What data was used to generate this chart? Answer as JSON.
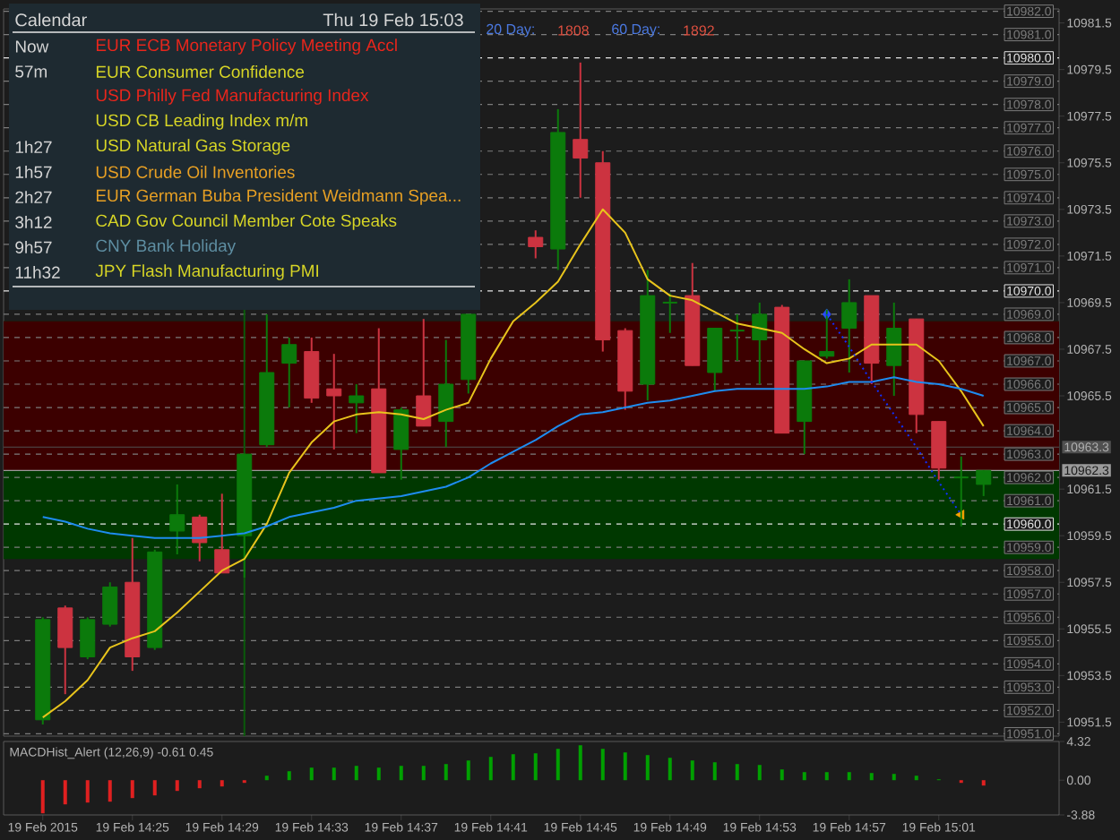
{
  "chart_data": [
    {
      "type": "candlestick",
      "categories": [
        null,
        null,
        null,
        null,
        null,
        null,
        null,
        null,
        null,
        null,
        null,
        null,
        null,
        null,
        null,
        null,
        null,
        null,
        null,
        null,
        null,
        null,
        null,
        null,
        null,
        null,
        null,
        null,
        null,
        null,
        null,
        null,
        null,
        null,
        null,
        null,
        null,
        null,
        null,
        null,
        null,
        null,
        null
      ],
      "ohlc": [
        [
          10951.6,
          10956.0,
          10951.4,
          10955.9
        ],
        [
          10956.4,
          10956.5,
          10952.7,
          10954.7
        ],
        [
          10954.3,
          10956.0,
          10954.2,
          10955.9
        ],
        [
          10955.7,
          10957.5,
          10955.6,
          10957.3
        ],
        [
          10957.5,
          10959.4,
          10953.7,
          10954.3
        ],
        [
          10954.7,
          10958.9,
          10954.6,
          10958.8
        ],
        [
          10959.7,
          10961.7,
          10958.7,
          10960.4
        ],
        [
          10960.3,
          10960.4,
          10958.4,
          10959.2
        ],
        [
          10958.9,
          10961.3,
          10957.9,
          10957.9
        ],
        [
          10959.5,
          10963.0,
          10957.7,
          10963.0
        ],
        [
          10963.4,
          10969.0,
          10963.3,
          10966.5
        ],
        [
          10966.9,
          10968.0,
          10965.0,
          10967.7
        ],
        [
          10967.4,
          10968.0,
          10965.2,
          10965.4
        ],
        [
          10965.8,
          10967.3,
          10963.2,
          10965.5
        ],
        [
          10965.2,
          10966.0,
          10963.9,
          10965.5
        ],
        [
          10965.8,
          10968.4,
          10962.2,
          10962.2
        ],
        [
          10963.2,
          10965.0,
          10961.9,
          10964.9
        ],
        [
          10965.5,
          10968.8,
          10964.2,
          10964.2
        ],
        [
          10964.4,
          10967.9,
          10963.3,
          10966.0
        ],
        [
          10966.2,
          10969.0,
          10965.6,
          10969.0
        ],
        null,
        null,
        [
          10972.3,
          10972.6,
          10971.4,
          10971.9
        ],
        [
          10971.8,
          10977.8,
          10970.9,
          10976.8
        ],
        [
          10976.5,
          10979.8,
          10974.0,
          10975.7
        ],
        [
          10975.5,
          10976.0,
          10967.4,
          10967.9
        ],
        [
          10968.3,
          10968.4,
          10964.9,
          10965.7
        ],
        [
          10966.0,
          10970.9,
          10965.3,
          10969.8
        ],
        [
          10969.5,
          10969.9,
          10968.2,
          10969.5
        ],
        [
          10969.8,
          10971.2,
          10966.8,
          10966.8
        ],
        [
          10966.5,
          10968.4,
          10965.7,
          10968.4
        ],
        [
          10968.3,
          10969.0,
          10967.0,
          10968.3
        ],
        [
          10967.9,
          10969.5,
          10966.0,
          10969.0
        ],
        [
          10969.3,
          10969.4,
          10963.9,
          10963.9
        ],
        [
          10964.4,
          10967.0,
          10963.0,
          10967.0
        ],
        [
          10967.2,
          10969.2,
          10967.1,
          10967.4
        ],
        [
          10968.4,
          10970.5,
          10966.5,
          10969.5
        ],
        [
          10969.8,
          10969.8,
          10966.0,
          10966.9
        ],
        [
          10966.8,
          10969.5,
          10965.5,
          10968.4
        ],
        [
          10968.8,
          10968.8,
          10963.9,
          10964.7
        ],
        [
          10964.4,
          10964.4,
          10961.9,
          10962.4
        ],
        [
          10962.0,
          10962.9,
          10959.9,
          10962.0
        ],
        [
          10961.7,
          10962.3,
          10961.2,
          10962.3
        ]
      ],
      "colors": [
        "#0b7a0b",
        "#cc3340",
        "#0b7a0b",
        "#0b7a0b",
        "#cc3340",
        "#0b7a0b",
        "#0b7a0b",
        "#cc3340",
        "#cc3340",
        "#0b7a0b",
        "#0b7a0b",
        "#0b7a0b",
        "#cc3340",
        "#cc3340",
        "#0b7a0b",
        "#cc3340",
        "#0b7a0b",
        "#cc3340",
        "#0b7a0b",
        "#0b7a0b",
        null,
        null,
        "#cc3340",
        "#0b7a0b",
        "#cc3340",
        "#cc3340",
        "#cc3340",
        "#0b7a0b",
        "#0b7a0b",
        "#cc3340",
        "#0b7a0b",
        "#0b7a0b",
        "#0b7a0b",
        "#cc3340",
        "#0b7a0b",
        "#0b7a0b",
        "#0b7a0b",
        "#cc3340",
        "#0b7a0b",
        "#cc3340",
        "#cc3340",
        "#0b7a0b",
        "#0b7a0b"
      ],
      "series": [
        {
          "type": "line",
          "color": "#e8c41c",
          "values": [
            10951.7,
            10952.4,
            10953.3,
            10954.7,
            10955.1,
            10955.4,
            10956.2,
            10957.1,
            10958.0,
            10958.5,
            10960.0,
            10962.2,
            10963.5,
            10964.4,
            10964.7,
            10964.8,
            10964.7,
            10964.5,
            10964.9,
            10965.2,
            10967.1,
            10968.7,
            10969.5,
            10970.4,
            10972.0,
            10973.5,
            10972.5,
            10970.5,
            10969.8,
            10969.6,
            10969.1,
            10968.6,
            10968.4,
            10968.2,
            10967.5,
            10966.9,
            10967.1,
            10967.7,
            10967.7,
            10967.7,
            10967.0,
            10965.7,
            10964.2
          ]
        },
        {
          "type": "line",
          "color": "#1e8cf0",
          "values": [
            10960.3,
            10960.1,
            10959.8,
            10959.6,
            10959.5,
            10959.4,
            10959.4,
            10959.4,
            10959.5,
            10959.6,
            10959.9,
            10960.3,
            10960.5,
            10960.7,
            10961.0,
            10961.1,
            10961.2,
            10961.4,
            10961.6,
            10962.0,
            10962.6,
            10963.1,
            10963.6,
            10964.2,
            10964.7,
            10964.8,
            10965.0,
            10965.2,
            10965.3,
            10965.5,
            10965.7,
            10965.8,
            10965.8,
            10965.8,
            10965.8,
            10965.9,
            10966.1,
            10966.1,
            10966.3,
            10966.1,
            10966.0,
            10965.8,
            10965.5
          ]
        },
        {
          "type": "line",
          "color": "#1030ff",
          "line_style": "dotted",
          "values": [
            null,
            null,
            null,
            null,
            null,
            null,
            null,
            null,
            null,
            null,
            null,
            null,
            null,
            null,
            null,
            null,
            null,
            null,
            null,
            null,
            null,
            null,
            null,
            null,
            null,
            null,
            null,
            null,
            null,
            null,
            null,
            null,
            null,
            null,
            null,
            10969.0,
            10967.6,
            10966.1,
            10964.7,
            10963.3,
            10961.8,
            10960.4,
            null
          ]
        },
        {
          "type": "scatter",
          "color": "#2a4cff",
          "marker": "diamond",
          "values": [
            null,
            null,
            null,
            null,
            null,
            null,
            null,
            null,
            null,
            null,
            null,
            null,
            null,
            null,
            null,
            null,
            null,
            null,
            null,
            null,
            null,
            null,
            null,
            null,
            null,
            null,
            null,
            null,
            null,
            null,
            null,
            null,
            null,
            null,
            null,
            10969.0,
            null,
            null,
            null,
            null,
            null,
            null,
            null
          ]
        },
        {
          "type": "scatter",
          "color": "#ffa500",
          "marker": "triangle",
          "values": [
            null,
            null,
            null,
            null,
            null,
            null,
            null,
            null,
            null,
            null,
            null,
            null,
            null,
            null,
            null,
            null,
            null,
            null,
            null,
            null,
            null,
            null,
            null,
            null,
            null,
            null,
            null,
            null,
            null,
            null,
            null,
            null,
            null,
            null,
            null,
            null,
            null,
            null,
            null,
            null,
            null,
            10960.4,
            null
          ]
        }
      ],
      "ylim": [
        10950.9,
        10982.1
      ],
      "yticks": [
        10981.5,
        10979.5,
        10977.5,
        10975.5,
        10973.5,
        10971.5,
        10969.5,
        10967.5,
        10965.5,
        10961.5,
        10959.5,
        10957.5,
        10955.5,
        10953.5,
        10951.5
      ],
      "tick_labels": "y",
      "bands": [
        {
          "axis": "y",
          "from": 10958.5,
          "to": 10968.7,
          "color": "#003800"
        },
        {
          "axis": "y",
          "from": 10962.3,
          "to": 10968.7,
          "color": "#3c0000"
        }
      ],
      "ref_lines": [
        {
          "axis": "y",
          "value": 10982,
          "label": "10982.0",
          "color": "#7c7c7c",
          "line_style": "dashed"
        },
        {
          "axis": "y",
          "value": 10981,
          "label": "10981.0",
          "color": "#7c7c7c",
          "line_style": "dashed"
        },
        {
          "axis": "y",
          "value": 10980,
          "label": "10980.0",
          "color": "#e6e6e6",
          "line_style": "dashed"
        },
        {
          "axis": "y",
          "value": 10979,
          "label": "10979.0",
          "color": "#7c7c7c",
          "line_style": "dashed"
        },
        {
          "axis": "y",
          "value": 10978,
          "label": "10978.0",
          "color": "#7c7c7c",
          "line_style": "dashed"
        },
        {
          "axis": "y",
          "value": 10977,
          "label": "10977.0",
          "color": "#7c7c7c",
          "line_style": "dashed"
        },
        {
          "axis": "y",
          "value": 10976,
          "label": "10976.0",
          "color": "#7c7c7c",
          "line_style": "dashed"
        },
        {
          "axis": "y",
          "value": 10975,
          "label": "10975.0",
          "color": "#7c7c7c",
          "line_style": "dashed"
        },
        {
          "axis": "y",
          "value": 10974,
          "label": "10974.0",
          "color": "#7c7c7c",
          "line_style": "dashed"
        },
        {
          "axis": "y",
          "value": 10973,
          "label": "10973.0",
          "color": "#7c7c7c",
          "line_style": "dashed"
        },
        {
          "axis": "y",
          "value": 10972,
          "label": "10972.0",
          "color": "#7c7c7c",
          "line_style": "dashed"
        },
        {
          "axis": "y",
          "value": 10971,
          "label": "10971.0",
          "color": "#7c7c7c",
          "line_style": "dashed"
        },
        {
          "axis": "y",
          "value": 10970,
          "label": "10970.0",
          "color": "#e6e6e6",
          "line_style": "dashed"
        },
        {
          "axis": "y",
          "value": 10969,
          "label": "10969.0",
          "color": "#7c7c7c",
          "line_style": "dashed"
        },
        {
          "axis": "y",
          "value": 10968,
          "label": "10968.0",
          "color": "#7c7c7c",
          "line_style": "dashed"
        },
        {
          "axis": "y",
          "value": 10967,
          "label": "10967.0",
          "color": "#7c7c7c",
          "line_style": "dashed"
        },
        {
          "axis": "y",
          "value": 10966,
          "label": "10966.0",
          "color": "#7c7c7c",
          "line_style": "dashed"
        },
        {
          "axis": "y",
          "value": 10965,
          "label": "10965.0",
          "color": "#7c7c7c",
          "line_style": "dashed"
        },
        {
          "axis": "y",
          "value": 10964,
          "label": "10964.0",
          "color": "#7c7c7c",
          "line_style": "dashed"
        },
        {
          "axis": "y",
          "value": 10963,
          "label": "10963.0",
          "color": "#7c7c7c",
          "line_style": "dashed"
        },
        {
          "axis": "y",
          "value": 10962,
          "label": "10962.0",
          "color": "#7c7c7c",
          "line_style": "dashed"
        },
        {
          "axis": "y",
          "value": 10961,
          "label": "10961.0",
          "color": "#7c7c7c",
          "line_style": "dashed"
        },
        {
          "axis": "y",
          "value": 10960,
          "label": "10960.0",
          "color": "#e6e6e6",
          "line_style": "dashed"
        },
        {
          "axis": "y",
          "value": 10959,
          "label": "10959.0",
          "color": "#7c7c7c",
          "line_style": "dashed"
        },
        {
          "axis": "y",
          "value": 10958,
          "label": "10958.0",
          "color": "#7c7c7c",
          "line_style": "dashed"
        },
        {
          "axis": "y",
          "value": 10957,
          "label": "10957.0",
          "color": "#7c7c7c",
          "line_style": "dashed"
        },
        {
          "axis": "y",
          "value": 10956,
          "label": "10956.0",
          "color": "#7c7c7c",
          "line_style": "dashed"
        },
        {
          "axis": "y",
          "value": 10955,
          "label": "10955.0",
          "color": "#7c7c7c",
          "line_style": "dashed"
        },
        {
          "axis": "y",
          "value": 10954,
          "label": "10954.0",
          "color": "#7c7c7c",
          "line_style": "dashed"
        },
        {
          "axis": "y",
          "value": 10953,
          "label": "10953.0",
          "color": "#7c7c7c",
          "line_style": "dashed"
        },
        {
          "axis": "y",
          "value": 10952,
          "label": "10952.0",
          "color": "#7c7c7c",
          "line_style": "dashed"
        },
        {
          "axis": "y",
          "value": 10951,
          "label": "10951.0",
          "color": "#7c7c7c",
          "line_style": "dashed"
        },
        {
          "axis": "y",
          "value": 10963.3,
          "label": "10963.3",
          "color": "#505050",
          "line_style": "solid"
        },
        {
          "axis": "y",
          "value": 10962.3,
          "label": "10962.3",
          "color": "#9a9a9a",
          "line_style": "solid"
        }
      ],
      "annotations": [
        "20 Day:",
        "1808",
        "60 Day:",
        "1892"
      ]
    },
    {
      "type": "bar",
      "title": "MACDHist_Alert (12,26,9) -0.61 0.45",
      "categories": [
        "19 Feb 2015",
        null,
        null,
        null,
        "19 Feb 14:25",
        null,
        null,
        null,
        "19 Feb 14:29",
        null,
        null,
        null,
        "19 Feb 14:33",
        null,
        null,
        null,
        "19 Feb 14:37",
        null,
        null,
        null,
        "19 Feb 14:41",
        null,
        null,
        null,
        "19 Feb 14:45",
        null,
        null,
        null,
        "19 Feb 14:49",
        null,
        null,
        null,
        "19 Feb 14:53",
        null,
        null,
        null,
        "19 Feb 14:57",
        null,
        null,
        null,
        "19 Feb 15:01",
        null,
        null
      ],
      "values": [
        -3.7,
        -2.7,
        -2.5,
        -2.4,
        -2.0,
        -1.7,
        -1.2,
        -0.9,
        -0.7,
        -0.3,
        0.5,
        1.0,
        1.4,
        1.4,
        1.6,
        1.4,
        1.6,
        1.6,
        1.8,
        2.2,
        2.6,
        2.9,
        3.0,
        3.5,
        3.9,
        3.5,
        3.1,
        2.8,
        2.5,
        2.2,
        2.0,
        1.8,
        1.7,
        1.2,
        0.9,
        0.9,
        0.9,
        0.8,
        0.7,
        0.5,
        0.1,
        -0.3,
        -0.6
      ],
      "colors": [
        "#e02020",
        "#e02020",
        "#e02020",
        "#e02020",
        "#e02020",
        "#e02020",
        "#e02020",
        "#e02020",
        "#e02020",
        "#e02020",
        "#00a000",
        "#00a000",
        "#00a000",
        "#00a000",
        "#00a000",
        "#00a000",
        "#00a000",
        "#00a000",
        "#00a000",
        "#00a000",
        "#00a000",
        "#00a000",
        "#00a000",
        "#00a000",
        "#00a000",
        "#00a000",
        "#00a000",
        "#00a000",
        "#00a000",
        "#00a000",
        "#00a000",
        "#00a000",
        "#00a000",
        "#00a000",
        "#00a000",
        "#00a000",
        "#00a000",
        "#00a000",
        "#00a000",
        "#00a000",
        "#00a000",
        "#e02020",
        "#e02020"
      ],
      "ylim": [
        -3.88,
        4.32
      ],
      "yticks": [
        4.32,
        {
          "value": 0,
          "label": "0.00"
        },
        -3.88
      ]
    },
    {
      "type": "other",
      "title": "Calendar",
      "subtitle": "Thu 19 Feb 15:03",
      "categories": [
        "Now",
        "57m",
        null,
        null,
        "1h27",
        "1h57",
        "2h27",
        "3h12",
        "9h57",
        "11h32"
      ],
      "annotations": [
        "EUR ECB Monetary Policy Meeting Accl",
        "EUR Consumer Confidence",
        "USD Philly Fed Manufacturing Index",
        "USD CB Leading Index m/m",
        "USD Natural Gas Storage",
        "USD Crude Oil Inventories",
        "EUR German Buba President Weidmann Spea...",
        "CAD Gov Council Member Cote Speaks",
        "CNY Bank Holiday",
        "JPY Flash Manufacturing PMI"
      ],
      "colors": [
        "#e8261c",
        "#d8d626",
        "#e8261c",
        "#d8d626",
        "#d8d626",
        "#e8a024",
        "#e8a024",
        "#d8d626",
        "#5e8ea2",
        "#d8d626"
      ]
    }
  ]
}
